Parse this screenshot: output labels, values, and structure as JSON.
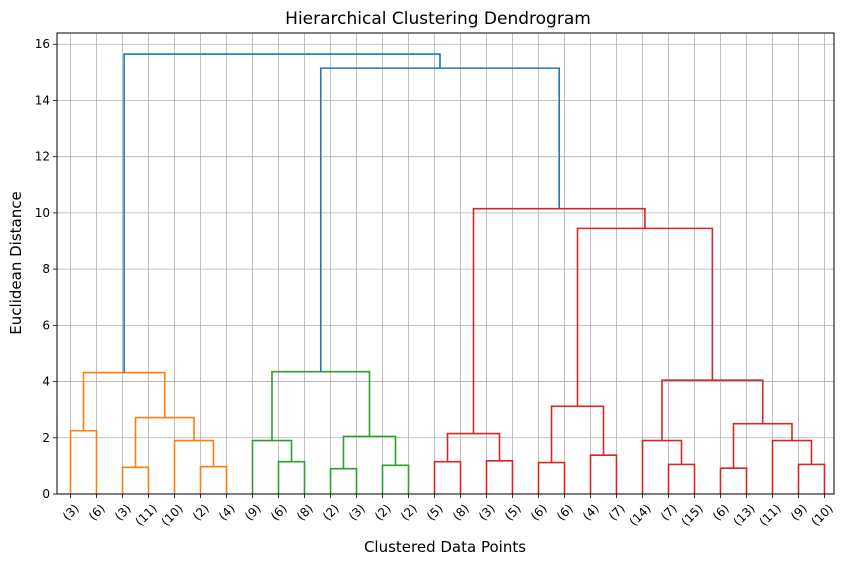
{
  "chart_data": {
    "type": "dendrogram",
    "title": "Hierarchical Clustering Dendrogram",
    "xlabel": "Clustered Data Points",
    "ylabel": "Euclidean Distance",
    "ylim": [
      0,
      16.4
    ],
    "yticks": [
      0,
      2,
      4,
      6,
      8,
      10,
      12,
      14,
      16
    ],
    "grid": true,
    "leaf_labels": [
      "(3)",
      "(6)",
      "(3)",
      "(11)",
      "(10)",
      "(2)",
      "(4)",
      "(9)",
      "(6)",
      "(8)",
      "(2)",
      "(3)",
      "(2)",
      "(2)",
      "(5)",
      "(8)",
      "(3)",
      "(5)",
      "(6)",
      "(6)",
      "(4)",
      "(7)",
      "(14)",
      "(7)",
      "(15)",
      "(6)",
      "(13)",
      "(11)",
      "(9)",
      "(10)"
    ],
    "colors": {
      "cluster_1": "#ff7f0e",
      "cluster_2": "#2ca02c",
      "cluster_3": "#d62728",
      "above_threshold": "#1f77b4"
    },
    "merges": [
      {
        "left": 0,
        "right": 1,
        "height": 2.25,
        "color": "cluster_1"
      },
      {
        "left": 2,
        "right": 3,
        "height": 0.95,
        "color": "cluster_1"
      },
      {
        "left": 5,
        "right": 6,
        "height": 0.97,
        "color": "cluster_1"
      },
      {
        "left": 4,
        "right": 32,
        "height": 1.9,
        "color": "cluster_1"
      },
      {
        "left": 31,
        "right": 33,
        "height": 2.72,
        "color": "cluster_1"
      },
      {
        "left": 30,
        "right": 34,
        "height": 4.32,
        "color": "cluster_1"
      },
      {
        "left": 8,
        "right": 9,
        "height": 1.15,
        "color": "cluster_2"
      },
      {
        "left": 7,
        "right": 36,
        "height": 1.9,
        "color": "cluster_2"
      },
      {
        "left": 10,
        "right": 11,
        "height": 0.9,
        "color": "cluster_2"
      },
      {
        "left": 12,
        "right": 13,
        "height": 1.02,
        "color": "cluster_2"
      },
      {
        "left": 38,
        "right": 39,
        "height": 2.05,
        "color": "cluster_2"
      },
      {
        "left": 37,
        "right": 40,
        "height": 4.35,
        "color": "cluster_2"
      },
      {
        "left": 14,
        "right": 15,
        "height": 1.15,
        "color": "cluster_3"
      },
      {
        "left": 16,
        "right": 17,
        "height": 1.18,
        "color": "cluster_3"
      },
      {
        "left": 42,
        "right": 43,
        "height": 2.15,
        "color": "cluster_3"
      },
      {
        "left": 18,
        "right": 19,
        "height": 1.12,
        "color": "cluster_3"
      },
      {
        "left": 20,
        "right": 21,
        "height": 1.38,
        "color": "cluster_3"
      },
      {
        "left": 45,
        "right": 46,
        "height": 3.12,
        "color": "cluster_3"
      },
      {
        "left": 23,
        "right": 24,
        "height": 1.05,
        "color": "cluster_3"
      },
      {
        "left": 22,
        "right": 48,
        "height": 1.9,
        "color": "cluster_3"
      },
      {
        "left": 25,
        "right": 26,
        "height": 0.92,
        "color": "cluster_3"
      },
      {
        "left": 28,
        "right": 29,
        "height": 1.05,
        "color": "cluster_3"
      },
      {
        "left": 27,
        "right": 51,
        "height": 1.9,
        "color": "cluster_3"
      },
      {
        "left": 50,
        "right": 52,
        "height": 2.5,
        "color": "cluster_3"
      },
      {
        "left": 49,
        "right": 53,
        "height": 4.05,
        "color": "cluster_3"
      },
      {
        "left": 47,
        "right": 54,
        "height": 9.45,
        "color": "cluster_3"
      },
      {
        "left": 44,
        "right": 55,
        "height": 10.15,
        "color": "cluster_3"
      },
      {
        "left": 41,
        "right": 56,
        "height": 15.15,
        "color": "above_threshold"
      },
      {
        "left": 35,
        "right": 57,
        "height": 15.65,
        "color": "above_threshold"
      }
    ]
  }
}
